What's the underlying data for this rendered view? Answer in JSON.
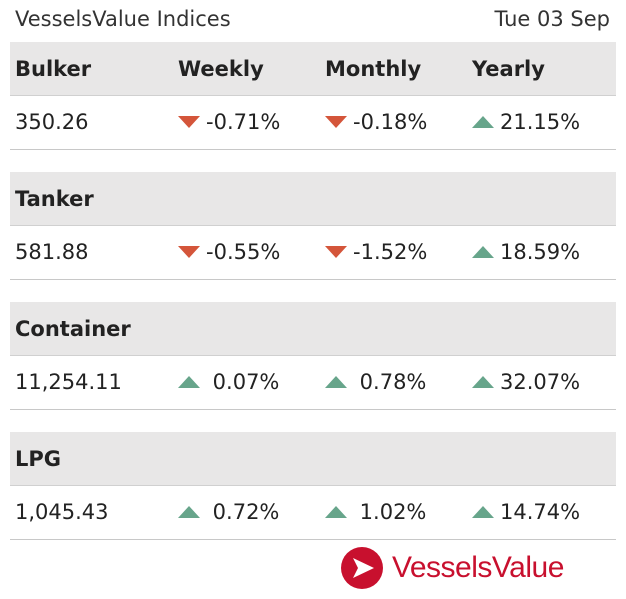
{
  "header": {
    "title": "VesselsValue Indices",
    "date": "Tue 03 Sep"
  },
  "columns": {
    "weekly": "Weekly",
    "monthly": "Monthly",
    "yearly": "Yearly"
  },
  "colors": {
    "down": "#d4553a",
    "up": "#67a58b",
    "brand": "#c8102e"
  },
  "sections": [
    {
      "name": "Bulker",
      "value": "350.26",
      "weekly": {
        "dir": "down",
        "text": "-0.71%"
      },
      "monthly": {
        "dir": "down",
        "text": "-0.18%"
      },
      "yearly": {
        "dir": "up",
        "text": "21.15%"
      }
    },
    {
      "name": "Tanker",
      "value": "581.88",
      "weekly": {
        "dir": "down",
        "text": "-0.55%"
      },
      "monthly": {
        "dir": "down",
        "text": "-1.52%"
      },
      "yearly": {
        "dir": "up",
        "text": "18.59%"
      }
    },
    {
      "name": "Container",
      "value": "11,254.11",
      "weekly": {
        "dir": "up",
        "text": " 0.07%"
      },
      "monthly": {
        "dir": "up",
        "text": " 0.78%"
      },
      "yearly": {
        "dir": "up",
        "text": "32.07%"
      }
    },
    {
      "name": "LPG",
      "value": "1,045.43",
      "weekly": {
        "dir": "up",
        "text": " 0.72%"
      },
      "monthly": {
        "dir": "up",
        "text": " 1.02%"
      },
      "yearly": {
        "dir": "up",
        "text": "14.74%"
      }
    }
  ],
  "logo": {
    "text": "VesselsValue",
    "icon": "vesselsvalue-logo-icon"
  }
}
